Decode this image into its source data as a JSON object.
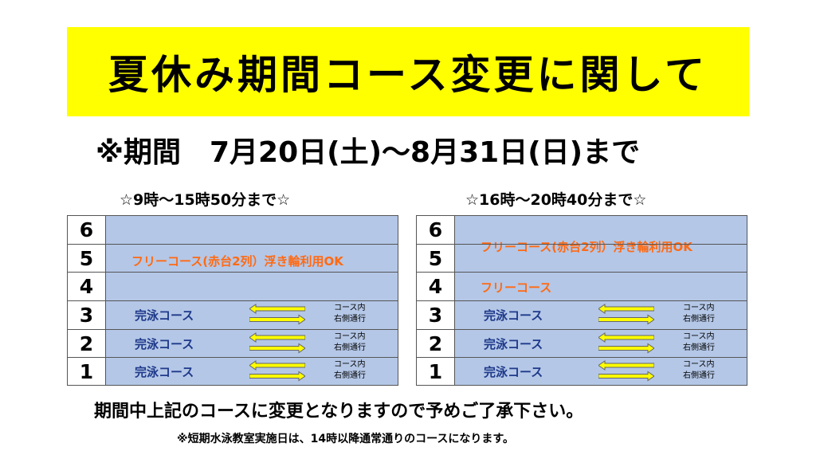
{
  "title": "夏休み期間コース変更に関して",
  "period": {
    "label": "※期間",
    "range": "7月20日(土)～8月31日(日)まで"
  },
  "panels": [
    {
      "subtitle": "☆9時～15時50分まで☆",
      "free_label": "フリーコース(赤台2列）浮き輪利用OK",
      "lanes": [
        "6",
        "5",
        "4",
        "3",
        "2",
        "1"
      ],
      "swim": [
        {
          "lane": "3",
          "label": "完泳コース",
          "note1": "コース内",
          "note2": "右側通行"
        },
        {
          "lane": "2",
          "label": "完泳コース",
          "note1": "コース内",
          "note2": "右側通行"
        },
        {
          "lane": "1",
          "label": "完泳コース",
          "note1": "コース内",
          "note2": "右側通行"
        }
      ]
    },
    {
      "subtitle": "☆16時～20時40分まで☆",
      "free_label": "フリーコース(赤台2列）浮き輪利用OK",
      "free_label_2": "フリーコース",
      "lanes": [
        "6",
        "5",
        "4",
        "3",
        "2",
        "1"
      ],
      "swim": [
        {
          "lane": "3",
          "label": "完泳コース",
          "note1": "コース内",
          "note2": "右側通行"
        },
        {
          "lane": "2",
          "label": "完泳コース",
          "note1": "コース内",
          "note2": "右側通行"
        },
        {
          "lane": "1",
          "label": "完泳コース",
          "note1": "コース内",
          "note2": "右側通行"
        }
      ]
    }
  ],
  "footer": {
    "main": "期間中上記のコースに変更となりますので予めご了承下さい。",
    "note": "※短期水泳教室実施日は、14時以降通常通りのコースになります。"
  },
  "colors": {
    "banner": "#ffff00",
    "lane_fill": "#b4c7e7",
    "free_text": "#ff6a13",
    "swim_text": "#1f3a8a",
    "arrow_fill": "#ffff00"
  },
  "icons": {
    "arrows": "bidirectional-arrows-icon"
  }
}
